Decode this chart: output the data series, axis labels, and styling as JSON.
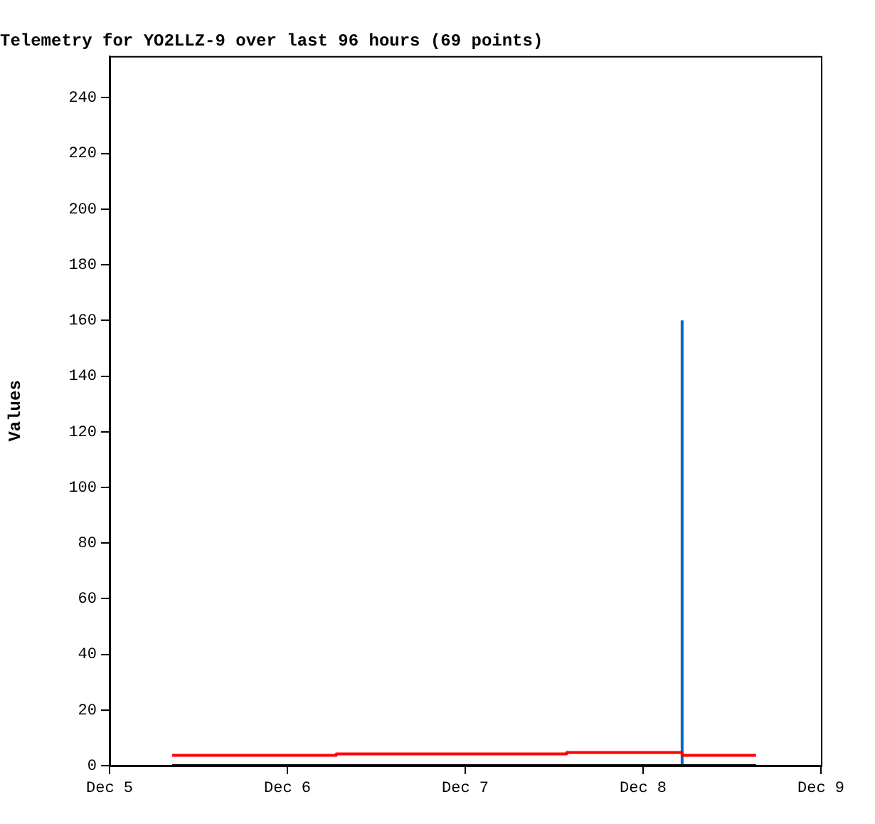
{
  "chart_data": {
    "type": "line",
    "title": "Telemetry for YO2LLZ-9 over last 96 hours (69 points)",
    "ylabel": "Values",
    "xlim": [
      "--12-05",
      "--12-09"
    ],
    "xticks": [
      {
        "value": "--12-05",
        "label": "Dec 5"
      },
      {
        "value": "--12-06",
        "label": "Dec 6"
      },
      {
        "value": "--12-07",
        "label": "Dec 7"
      },
      {
        "value": "--12-08",
        "label": "Dec 8"
      },
      {
        "value": "--12-09",
        "label": "Dec 9"
      }
    ],
    "ylim": [
      0,
      255
    ],
    "yticks": [
      0,
      20,
      40,
      60,
      80,
      100,
      120,
      140,
      160,
      180,
      200,
      220,
      240
    ],
    "grid": false,
    "legend": false,
    "marker": "none",
    "line_style": "solid",
    "series": [
      {
        "color": "#000000",
        "x": [
          "--12-05T08:27",
          "--12-08T15:14"
        ],
        "values": [
          0,
          0
        ]
      },
      {
        "color": "#ff0000",
        "x": [
          "--12-05T08:27",
          "--12-06T06:36",
          "--12-06T06:36",
          "--12-07T13:41",
          "--12-07T13:41",
          "--12-08T05:16",
          "--12-08T05:16",
          "--12-08T15:14"
        ],
        "values": [
          3.7,
          3.7,
          4.2,
          4.2,
          4.7,
          4.7,
          3.7,
          3.7
        ]
      },
      {
        "color": "#0066cc",
        "x": [
          "--12-08T05:16",
          "--12-08T05:16"
        ],
        "values": [
          0,
          160
        ]
      }
    ]
  }
}
